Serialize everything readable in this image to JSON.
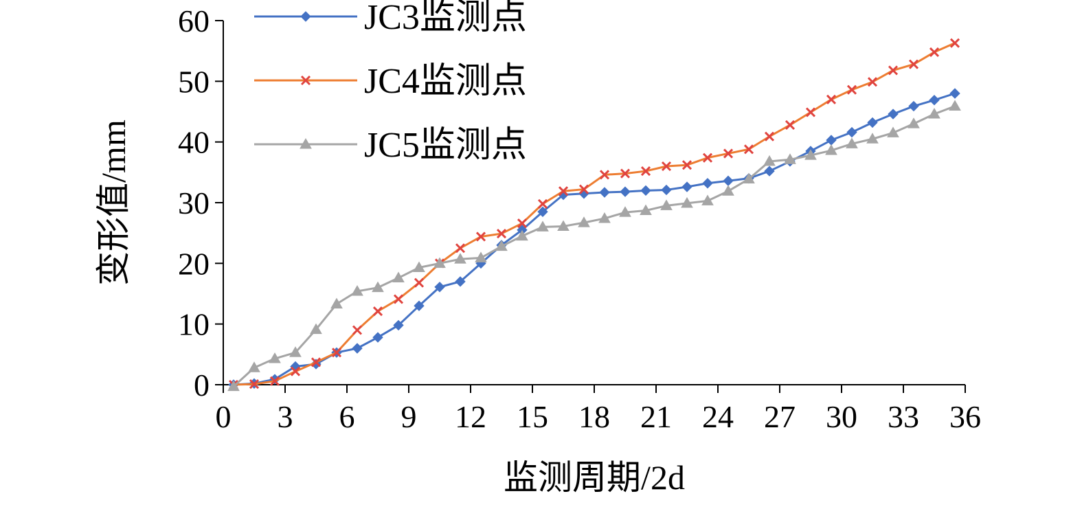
{
  "chart_data": {
    "type": "line",
    "title": "",
    "xlabel": "监测周期/2d",
    "ylabel": "变形值/mm",
    "xlim": [
      0,
      36
    ],
    "ylim": [
      0,
      60
    ],
    "xticks": [
      0,
      3,
      6,
      9,
      12,
      15,
      18,
      21,
      24,
      27,
      30,
      33,
      36
    ],
    "yticks": [
      0,
      10,
      20,
      30,
      40,
      50,
      60
    ],
    "grid": false,
    "legend_position": "top-left",
    "x": [
      0.5,
      1.5,
      2.5,
      3.5,
      4.5,
      5.5,
      6.5,
      7.5,
      8.5,
      9.5,
      10.5,
      11.5,
      12.5,
      13.5,
      14.5,
      15.5,
      16.5,
      17.5,
      18.5,
      19.5,
      20.5,
      21.5,
      22.5,
      23.5,
      24.5,
      25.5,
      26.5,
      27.5,
      28.5,
      29.5,
      30.5,
      31.5,
      32.5,
      33.5,
      34.5,
      35.5
    ],
    "series": [
      {
        "name": "JC3监测点",
        "color": "#4472c4",
        "marker": "diamond",
        "values": [
          0.0,
          0.2,
          0.9,
          3.0,
          3.4,
          5.3,
          6.0,
          7.8,
          9.8,
          13.0,
          16.1,
          17.0,
          20.0,
          23.0,
          25.5,
          28.5,
          31.3,
          31.5,
          31.7,
          31.8,
          32.0,
          32.1,
          32.6,
          33.2,
          33.6,
          34.0,
          35.2,
          36.8,
          38.5,
          40.3,
          41.6,
          43.2,
          44.6,
          45.9,
          46.9,
          48.0
        ]
      },
      {
        "name": "JC4监测点",
        "color": "#ed7d31",
        "marker": "x",
        "values": [
          0.0,
          0.1,
          0.6,
          2.2,
          3.7,
          5.3,
          9.0,
          12.1,
          14.1,
          16.8,
          20.0,
          22.5,
          24.4,
          24.9,
          26.6,
          29.8,
          31.9,
          32.2,
          34.6,
          34.8,
          35.2,
          36.0,
          36.2,
          37.4,
          38.1,
          38.8,
          40.9,
          42.8,
          44.9,
          47.0,
          48.6,
          49.9,
          51.8,
          52.8,
          54.8,
          56.3
        ]
      },
      {
        "name": "JC5监测点",
        "color": "#a5a5a5",
        "marker": "triangle",
        "values": [
          -0.3,
          2.8,
          4.3,
          5.3,
          9.1,
          13.3,
          15.4,
          16.0,
          17.6,
          19.3,
          20.0,
          20.7,
          20.9,
          22.8,
          24.5,
          26.0,
          26.1,
          26.7,
          27.4,
          28.4,
          28.7,
          29.5,
          29.9,
          30.3,
          31.9,
          33.9,
          36.8,
          37.1,
          37.8,
          38.6,
          39.7,
          40.5,
          41.5,
          43.0,
          44.6,
          45.9
        ]
      }
    ]
  }
}
